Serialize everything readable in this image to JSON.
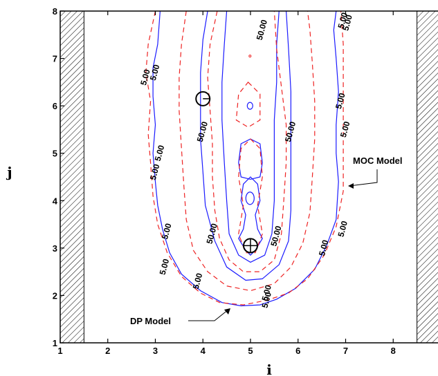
{
  "chart_data": {
    "type": "contour",
    "xlabel": "i",
    "ylabel": "j",
    "xlim": [
      1,
      9
    ],
    "ylim": [
      1,
      8
    ],
    "x_ticks": [
      "1",
      "2",
      "3",
      "4",
      "5",
      "6",
      "7",
      "8"
    ],
    "y_ticks": [
      "1",
      "2",
      "3",
      "4",
      "5",
      "6",
      "7",
      "8"
    ],
    "contour_levels": [
      5.0,
      50.0
    ],
    "walls": [
      {
        "x_range": [
          1.0,
          1.5
        ],
        "y_range": [
          1,
          8
        ]
      },
      {
        "x_range": [
          8.5,
          9.0
        ],
        "y_range": [
          1,
          8
        ]
      }
    ],
    "wells": [
      {
        "i": 5.0,
        "j": 3.05,
        "type": "injection"
      },
      {
        "i": 4.0,
        "j": 6.15,
        "type": "extraction"
      }
    ],
    "series": [
      {
        "name": "MOC Model",
        "style": "solid",
        "color": "#1a1aff"
      },
      {
        "name": "DP Model",
        "style": "dashed",
        "color": "#ee2222"
      }
    ],
    "contour_labels": [
      {
        "text": "5.00",
        "x": 2.8,
        "y": 6.6
      },
      {
        "text": "5.00",
        "x": 3.0,
        "y": 6.7
      },
      {
        "text": "5.00",
        "x": 3.1,
        "y": 5.0
      },
      {
        "text": "5.00",
        "x": 3.0,
        "y": 4.6
      },
      {
        "text": "5.00",
        "x": 3.25,
        "y": 3.35
      },
      {
        "text": "5.00",
        "x": 3.2,
        "y": 2.6
      },
      {
        "text": "5.00",
        "x": 3.9,
        "y": 2.3
      },
      {
        "text": "5.00",
        "x": 5.35,
        "y": 2.05
      },
      {
        "text": "5.00",
        "x": 5.35,
        "y": 1.9
      },
      {
        "text": "5.00",
        "x": 6.55,
        "y": 3.0
      },
      {
        "text": "5.00",
        "x": 6.95,
        "y": 3.4
      },
      {
        "text": "5.00",
        "x": 6.9,
        "y": 6.1
      },
      {
        "text": "5.00",
        "x": 7.0,
        "y": 5.5
      },
      {
        "text": "5.00",
        "x": 6.95,
        "y": 7.8
      },
      {
        "text": "5.00",
        "x": 7.05,
        "y": 7.75
      },
      {
        "text": "50.00",
        "x": 4.0,
        "y": 5.45
      },
      {
        "text": "50.00",
        "x": 5.25,
        "y": 7.6
      },
      {
        "text": "50.00",
        "x": 5.85,
        "y": 5.45
      },
      {
        "text": "50.00",
        "x": 4.2,
        "y": 3.3
      },
      {
        "text": "50.00",
        "x": 5.55,
        "y": 3.25
      }
    ],
    "annotations": [
      "MOC Model",
      "DP Model"
    ]
  }
}
